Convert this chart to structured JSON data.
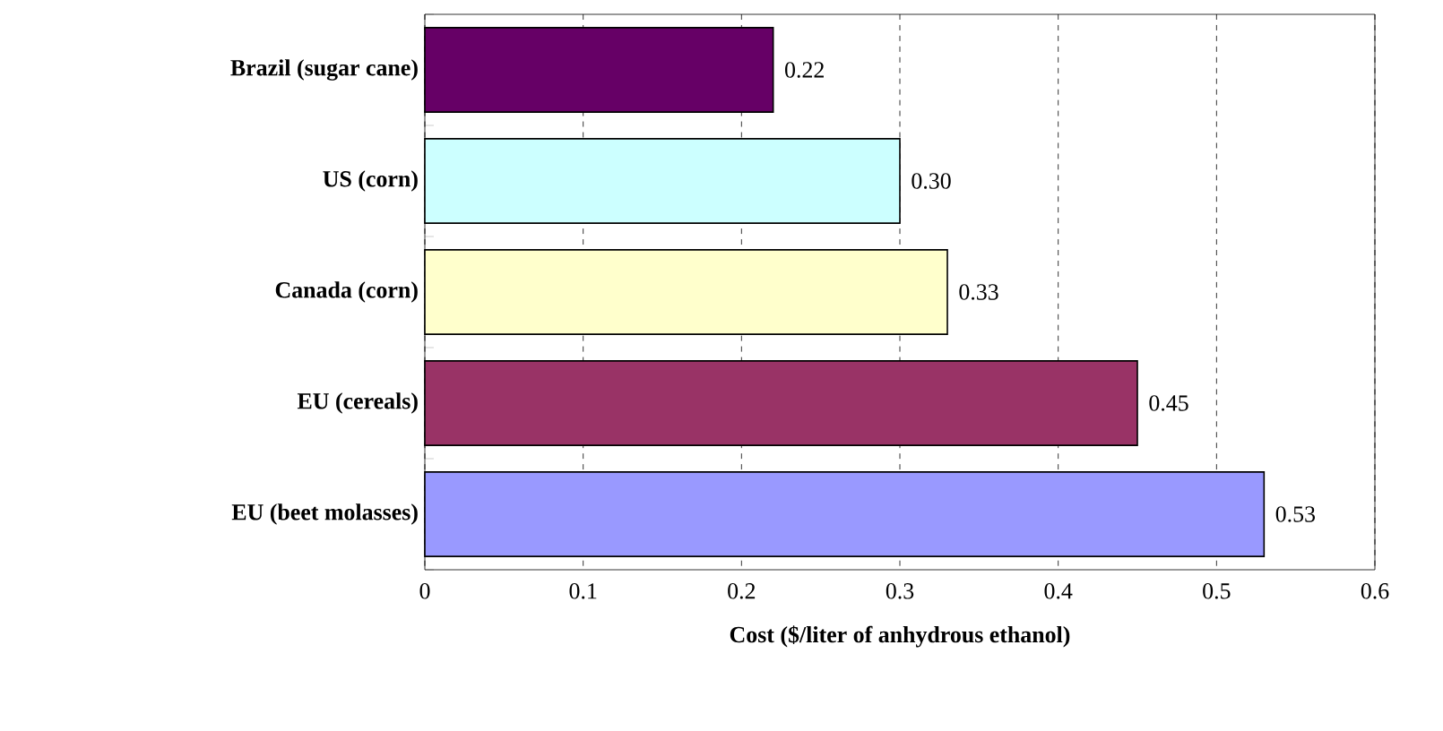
{
  "chart_data": {
    "type": "bar",
    "orientation": "horizontal",
    "xlabel": "Cost ($/liter of anhydrous ethanol)",
    "categories": [
      "Brazil (sugar cane)",
      "US (corn)",
      "Canada (corn)",
      "EU (cereals)",
      "EU (beet molasses)"
    ],
    "values": [
      0.22,
      0.3,
      0.33,
      0.45,
      0.53
    ],
    "value_labels": [
      "0.22",
      "0.30",
      "0.33",
      "0.45",
      "0.53"
    ],
    "colors": [
      "#660066",
      "#ccffff",
      "#ffffcc",
      "#993366",
      "#9999ff"
    ],
    "xlim": [
      0,
      0.6
    ],
    "xticks": [
      0,
      0.1,
      0.2,
      0.3,
      0.4,
      0.5,
      0.6
    ],
    "grid": "x"
  }
}
